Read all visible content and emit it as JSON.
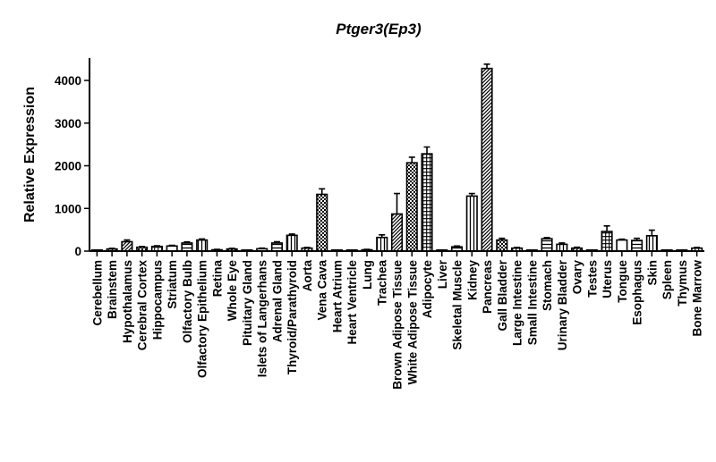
{
  "chart_data": {
    "type": "bar",
    "title": "Ptger3(Ep3)",
    "xlabel": "",
    "ylabel": "Relative Expression",
    "ylim": [
      0,
      4400
    ],
    "yticks": [
      0,
      1000,
      2000,
      3000,
      4000
    ],
    "grid": false,
    "legend": "none",
    "categories": [
      "Cerebellum",
      "Brainstem",
      "Hypothalamus",
      "Cerebral Cortex",
      "Hippocampus",
      "Striatum",
      "Olfactory Bulb",
      "Olfactory Epithelium",
      "Retina",
      "Whole Eye",
      "Pituitary Gland",
      "Islets of Langerhans",
      "Adrenal Gland",
      "Thyroid/Parathyroid",
      "Aorta",
      "Vena Cava",
      "Heart Atrium",
      "Heart Ventricle",
      "Lung",
      "Trachea",
      "Brown Adipose Tissue",
      "White Adipose Tissue",
      "Adipocyte",
      "Liver",
      "Skeletal Muscle",
      "Kidney",
      "Pancreas",
      "Gall Bladder",
      "Large Intestine",
      "Small Intestine",
      "Stomach",
      "Urinary Bladder",
      "Ovary",
      "Testes",
      "Uterus",
      "Tongue",
      "Esophagus",
      "Skin",
      "Spleen",
      "Thymus",
      "Bone Marrow"
    ],
    "values": [
      10,
      50,
      220,
      90,
      110,
      120,
      190,
      260,
      30,
      50,
      10,
      55,
      190,
      370,
      70,
      1330,
      10,
      10,
      30,
      320,
      870,
      2070,
      2280,
      10,
      100,
      1290,
      4280,
      260,
      70,
      15,
      290,
      160,
      70,
      10,
      460,
      260,
      250,
      360,
      20,
      20,
      70
    ],
    "errors": [
      5,
      15,
      40,
      15,
      15,
      15,
      25,
      25,
      10,
      15,
      5,
      15,
      30,
      30,
      15,
      130,
      5,
      5,
      10,
      60,
      480,
      130,
      160,
      5,
      20,
      60,
      100,
      40,
      15,
      5,
      25,
      30,
      20,
      5,
      130,
      20,
      50,
      130,
      5,
      5,
      15
    ]
  }
}
